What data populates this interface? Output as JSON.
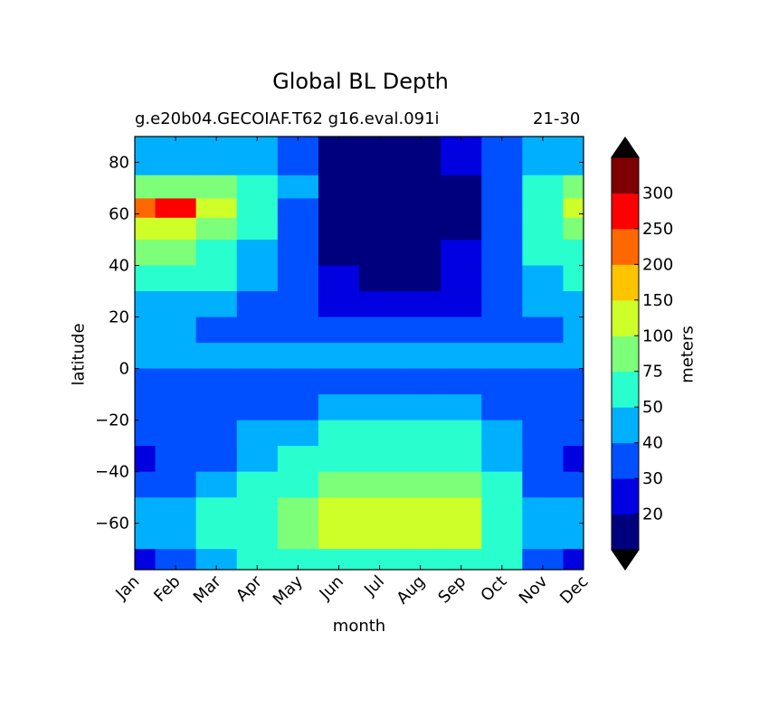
{
  "chart_data": {
    "type": "heatmap",
    "title": "Global BL Depth",
    "subtitle": "g.e20b04.GECOIAF.T62 g16.eval.091i",
    "period_label": "21-30",
    "xlabel": "month",
    "ylabel": "latitude",
    "colorbar_label": "meters",
    "x_categories": [
      "Jan",
      "Feb",
      "Mar",
      "Apr",
      "May",
      "Jun",
      "Jul",
      "Aug",
      "Sep",
      "Oct",
      "Nov",
      "Dec"
    ],
    "y_ticks": [
      80,
      60,
      40,
      20,
      0,
      -20,
      -40,
      -60
    ],
    "ylim": [
      -78,
      90
    ],
    "levels": [
      0,
      20,
      30,
      40,
      50,
      75,
      100,
      150,
      200,
      250,
      300,
      350
    ],
    "colorbar_tick_labels": [
      "20",
      "30",
      "40",
      "50",
      "75",
      "100",
      "150",
      "200",
      "250",
      "300"
    ],
    "level_colors": [
      "#00007f",
      "#0000e0",
      "#0050ff",
      "#00b0ff",
      "#29ffce",
      "#7dff7a",
      "#ceff29",
      "#ffc400",
      "#ff6800",
      "#fe0000",
      "#7f0000"
    ],
    "colorbar_extend": "both",
    "series": [
      {
        "month": "Jan",
        "latitudes": [
          88,
          80,
          70,
          62,
          55,
          45,
          35,
          25,
          15,
          5,
          -5,
          -15,
          -25,
          -35,
          -45,
          -55,
          -65,
          -75
        ],
        "values": [
          45,
          45,
          80,
          200,
          110,
          80,
          60,
          45,
          40,
          40,
          35,
          30,
          30,
          22,
          30,
          45,
          40,
          20
        ]
      },
      {
        "month": "Feb",
        "latitudes": [
          88,
          80,
          70,
          62,
          55,
          45,
          35,
          25,
          15,
          5,
          -5,
          -15,
          -25,
          -35,
          -45,
          -55,
          -65,
          -75
        ],
        "values": [
          45,
          45,
          90,
          260,
          120,
          85,
          65,
          45,
          40,
          40,
          30,
          30,
          30,
          30,
          30,
          45,
          45,
          35
        ]
      },
      {
        "month": "Mar",
        "latitudes": [
          88,
          80,
          70,
          62,
          55,
          45,
          35,
          25,
          15,
          5,
          -5,
          -15,
          -25,
          -35,
          -45,
          -55,
          -65,
          -75
        ],
        "values": [
          45,
          45,
          80,
          110,
          80,
          60,
          50,
          40,
          35,
          40,
          30,
          30,
          35,
          35,
          40,
          55,
          55,
          45
        ]
      },
      {
        "month": "Apr",
        "latitudes": [
          88,
          80,
          70,
          62,
          55,
          45,
          35,
          25,
          15,
          5,
          -5,
          -15,
          -25,
          -35,
          -45,
          -55,
          -65,
          -75
        ],
        "values": [
          40,
          45,
          55,
          60,
          55,
          45,
          40,
          35,
          35,
          40,
          30,
          35,
          40,
          45,
          50,
          70,
          70,
          50
        ]
      },
      {
        "month": "May",
        "latitudes": [
          88,
          80,
          70,
          62,
          55,
          45,
          35,
          25,
          15,
          5,
          -5,
          -15,
          -25,
          -35,
          -45,
          -55,
          -65,
          -75
        ],
        "values": [
          30,
          35,
          40,
          35,
          30,
          30,
          30,
          30,
          30,
          40,
          30,
          35,
          45,
          50,
          60,
          80,
          80,
          55
        ]
      },
      {
        "month": "Jun",
        "latitudes": [
          88,
          80,
          70,
          62,
          55,
          45,
          35,
          25,
          15,
          5,
          -5,
          -15,
          -25,
          -35,
          -45,
          -55,
          -65,
          -75
        ],
        "values": [
          15,
          15,
          15,
          15,
          15,
          15,
          20,
          25,
          30,
          40,
          35,
          40,
          50,
          60,
          80,
          110,
          100,
          60
        ]
      },
      {
        "month": "Jul",
        "latitudes": [
          88,
          80,
          70,
          62,
          55,
          45,
          35,
          25,
          15,
          5,
          -5,
          -15,
          -25,
          -35,
          -45,
          -55,
          -65,
          -75
        ],
        "values": [
          15,
          15,
          15,
          15,
          15,
          15,
          18,
          25,
          30,
          40,
          35,
          45,
          55,
          70,
          90,
          120,
          110,
          65
        ]
      },
      {
        "month": "Aug",
        "latitudes": [
          88,
          80,
          70,
          62,
          55,
          45,
          35,
          25,
          15,
          5,
          -5,
          -15,
          -25,
          -35,
          -45,
          -55,
          -65,
          -75
        ],
        "values": [
          15,
          15,
          15,
          15,
          15,
          15,
          18,
          25,
          30,
          40,
          35,
          45,
          55,
          70,
          90,
          120,
          110,
          60
        ]
      },
      {
        "month": "Sep",
        "latitudes": [
          88,
          80,
          70,
          62,
          55,
          45,
          35,
          25,
          15,
          5,
          -5,
          -15,
          -25,
          -35,
          -45,
          -55,
          -65,
          -75
        ],
        "values": [
          20,
          20,
          18,
          18,
          18,
          20,
          20,
          25,
          30,
          40,
          30,
          40,
          50,
          60,
          80,
          110,
          100,
          60
        ]
      },
      {
        "month": "Oct",
        "latitudes": [
          88,
          80,
          70,
          62,
          55,
          45,
          35,
          25,
          15,
          5,
          -5,
          -15,
          -25,
          -35,
          -45,
          -55,
          -65,
          -75
        ],
        "values": [
          35,
          30,
          30,
          30,
          30,
          30,
          30,
          30,
          35,
          40,
          30,
          35,
          40,
          45,
          55,
          70,
          70,
          55
        ]
      },
      {
        "month": "Nov",
        "latitudes": [
          88,
          80,
          70,
          62,
          55,
          45,
          35,
          25,
          15,
          5,
          -5,
          -15,
          -25,
          -35,
          -45,
          -55,
          -65,
          -75
        ],
        "values": [
          45,
          45,
          55,
          70,
          60,
          55,
          45,
          40,
          35,
          40,
          30,
          30,
          30,
          30,
          35,
          45,
          45,
          35
        ]
      },
      {
        "month": "Dec",
        "latitudes": [
          88,
          80,
          70,
          62,
          55,
          45,
          35,
          25,
          15,
          5,
          -5,
          -15,
          -25,
          -35,
          -45,
          -55,
          -65,
          -75
        ],
        "values": [
          45,
          45,
          75,
          140,
          90,
          70,
          55,
          45,
          40,
          40,
          30,
          30,
          30,
          20,
          30,
          45,
          40,
          20
        ]
      }
    ]
  }
}
